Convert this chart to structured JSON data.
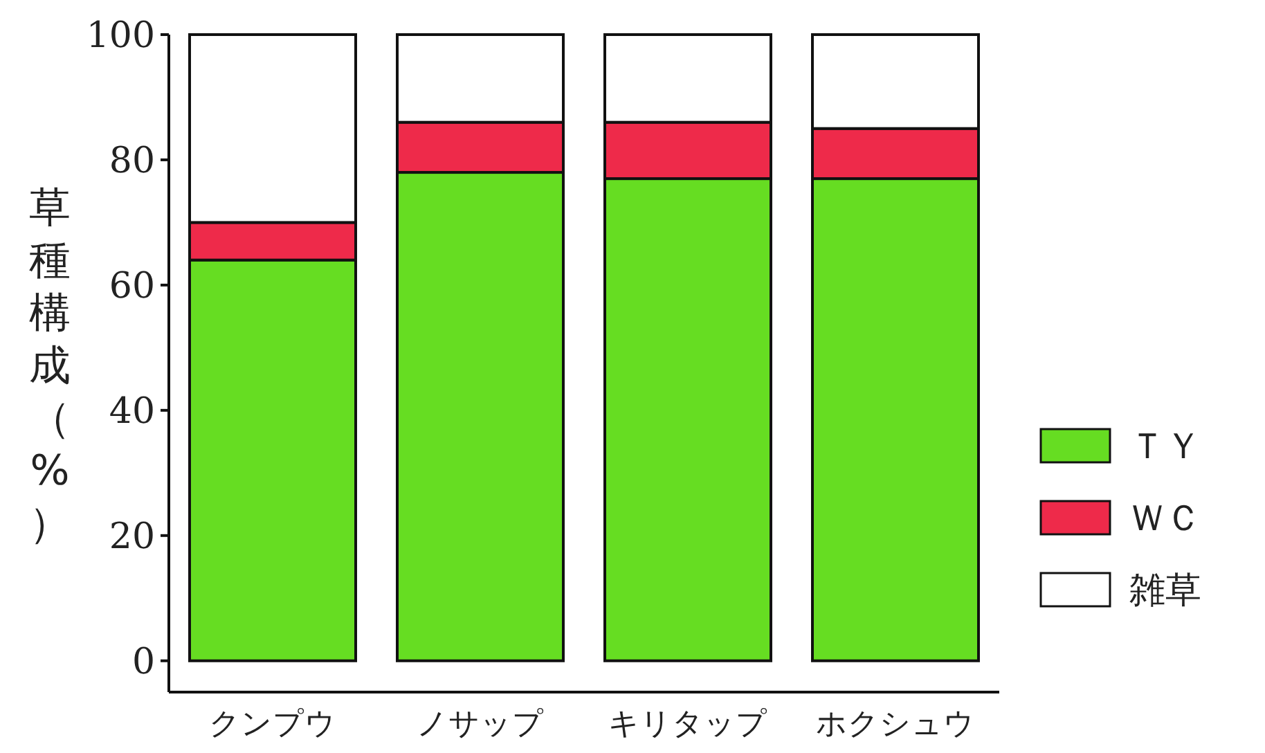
{
  "chart_data": {
    "type": "bar",
    "stacked": true,
    "ylabel": "草種構成（%）",
    "categories": [
      "クンプウ",
      "ノサップ",
      "キリタップ",
      "ホクシュウ"
    ],
    "series": [
      {
        "name": "ＴＹ",
        "color": "#66dd22",
        "values": [
          64,
          78,
          77,
          77
        ]
      },
      {
        "name": "ＷＣ",
        "color": "#ee2a4a",
        "values": [
          6,
          8,
          9,
          8
        ]
      },
      {
        "name": "雑草",
        "color": "#ffffff",
        "values": [
          30,
          14,
          14,
          15
        ]
      }
    ],
    "ylim": [
      -5,
      100
    ],
    "yticks": [
      0,
      20,
      40,
      60,
      80,
      100
    ],
    "grid": false,
    "legend": "right"
  }
}
